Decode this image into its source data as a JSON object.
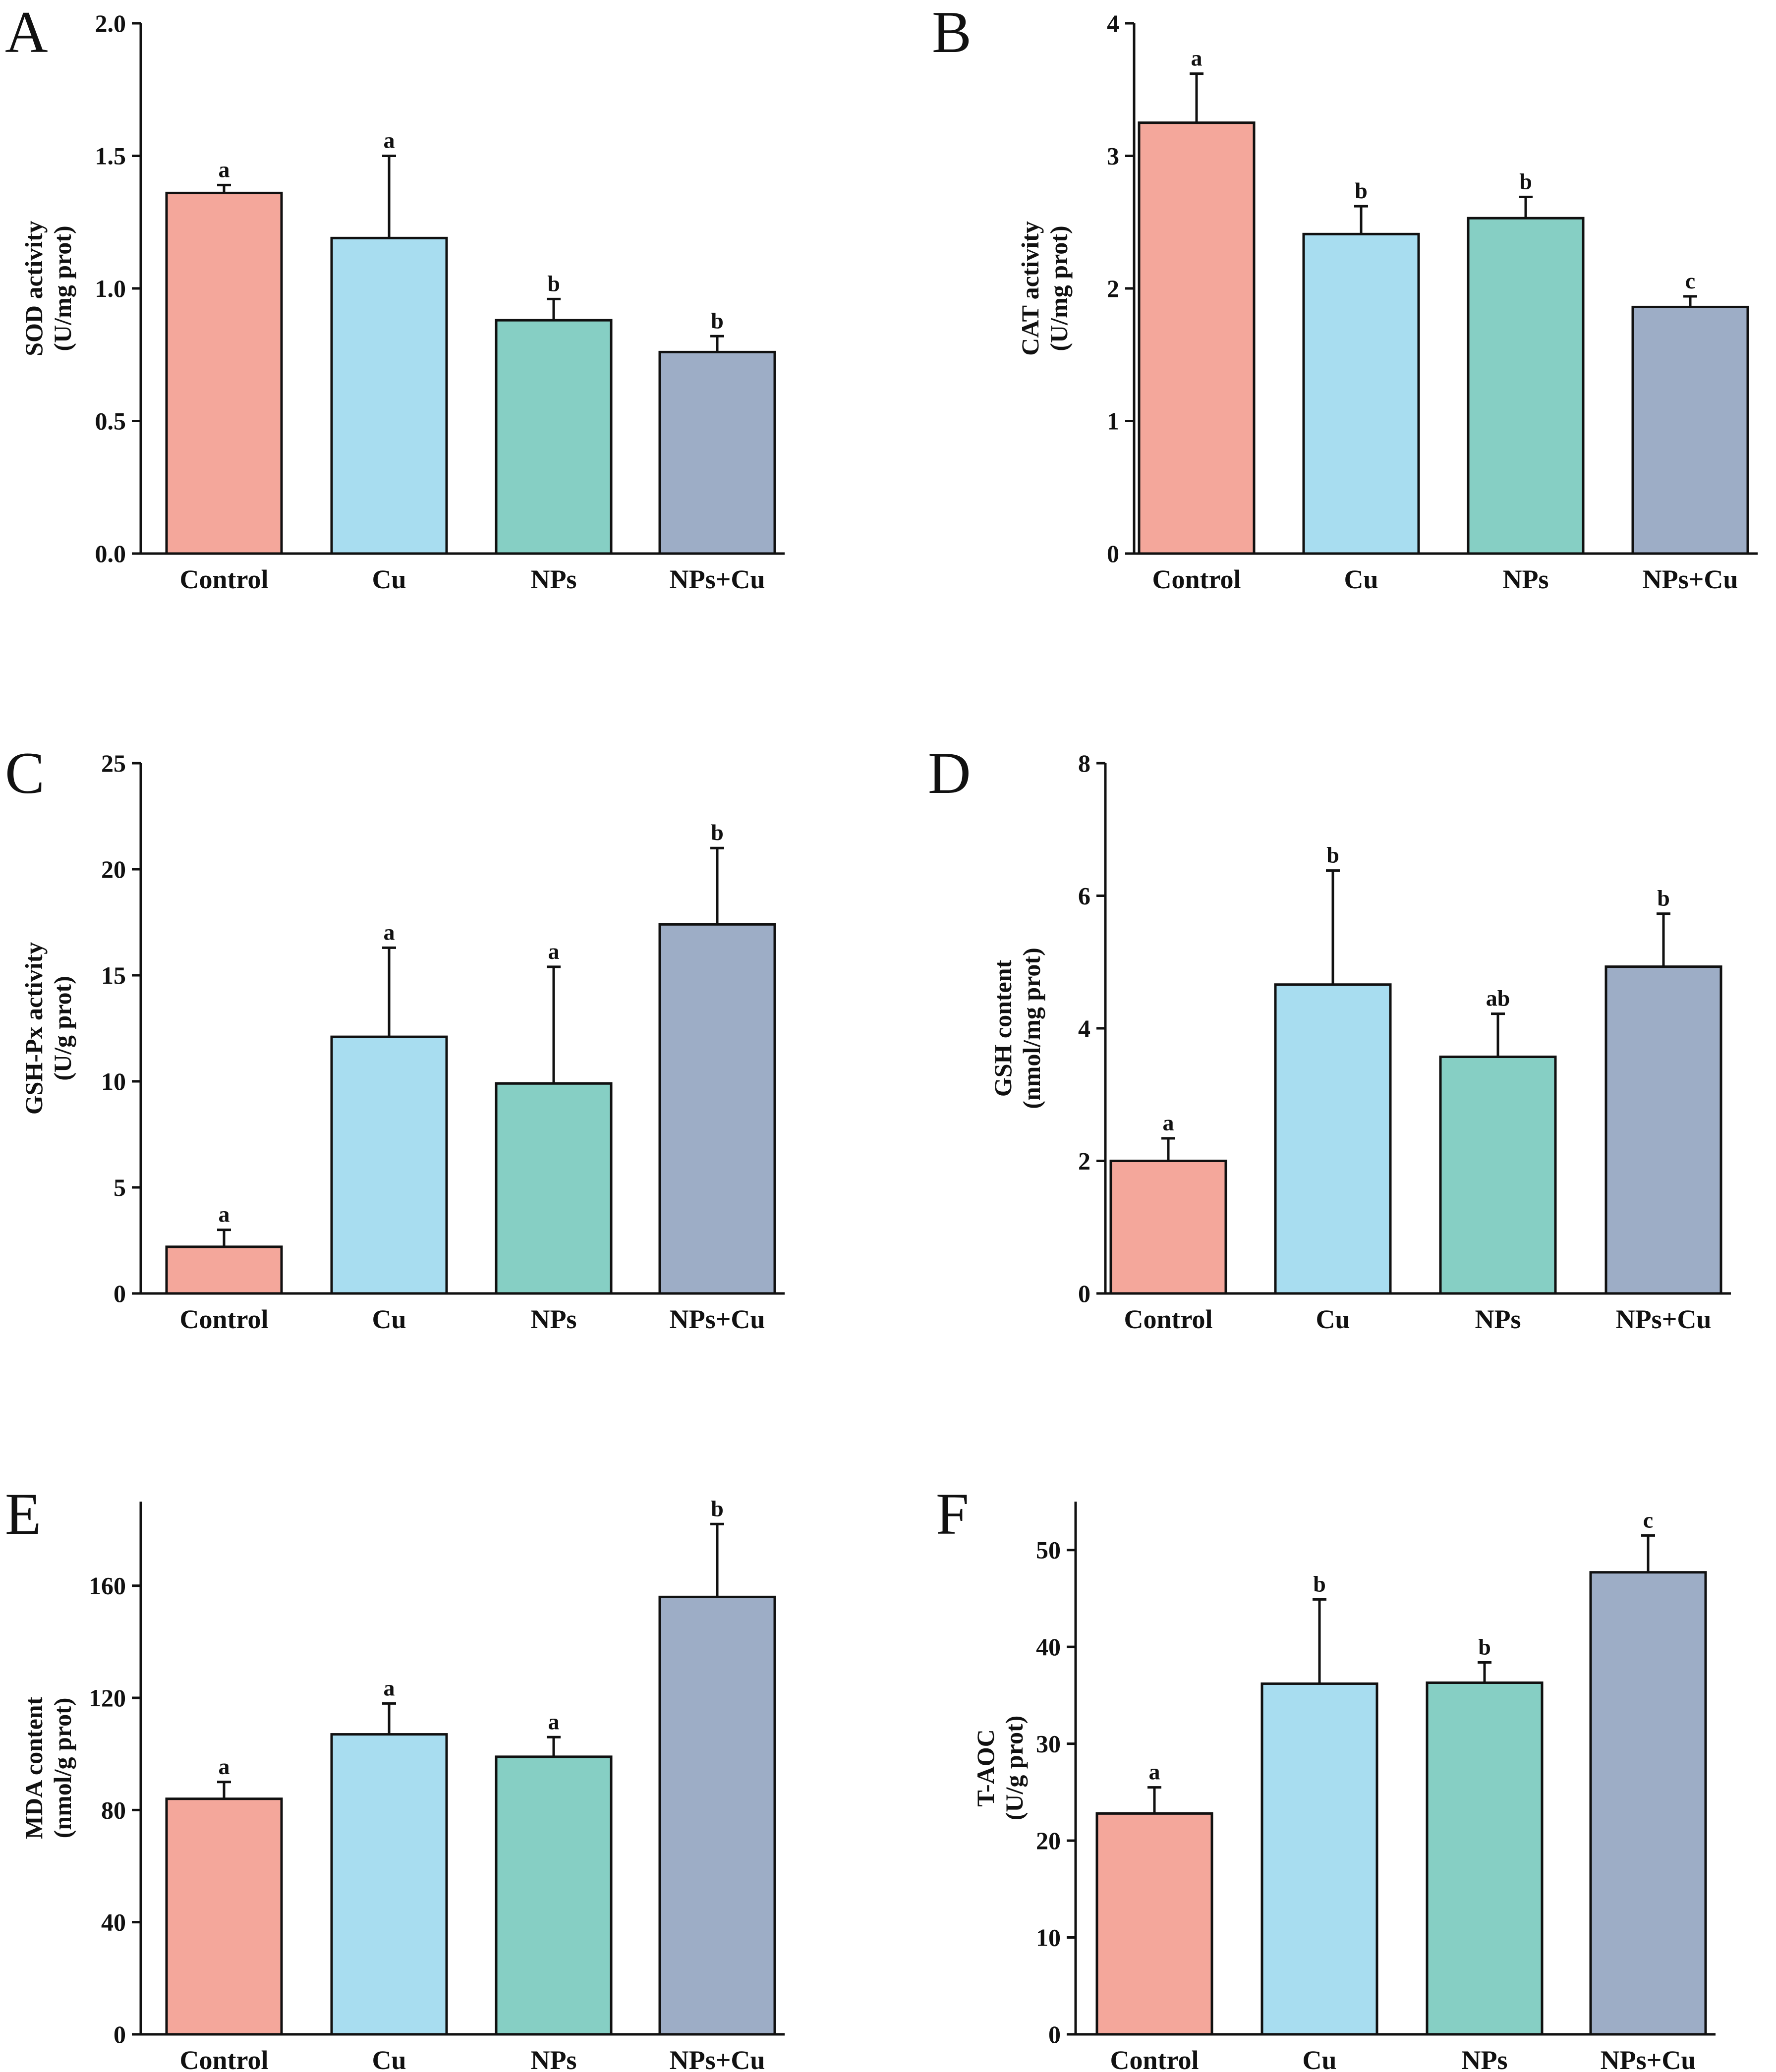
{
  "colors": {
    "Control": "#F4A79B",
    "Cu": "#A8DDF0",
    "NPs": "#86CFC4",
    "NPs+Cu": "#9DADC6"
  },
  "chart_data": [
    {
      "panel": "A",
      "type": "bar",
      "categories": [
        "Control",
        "Cu",
        "NPs",
        "NPs+Cu"
      ],
      "values": [
        1.36,
        1.19,
        0.88,
        0.76
      ],
      "errors": [
        0.03,
        0.31,
        0.08,
        0.06
      ],
      "significance": [
        "a",
        "a",
        "b",
        "b"
      ],
      "ylabel_line1": "SOD activity",
      "ylabel_line2": "(U/mg prot)",
      "ylim": [
        0,
        2.0
      ],
      "yticks": [
        "0.0",
        "0.5",
        "1.0",
        "1.5",
        "2.0"
      ]
    },
    {
      "panel": "B",
      "type": "bar",
      "categories": [
        "Control",
        "Cu",
        "NPs",
        "NPs+Cu"
      ],
      "values": [
        3.25,
        2.41,
        2.53,
        1.86
      ],
      "errors": [
        0.37,
        0.21,
        0.16,
        0.08
      ],
      "significance": [
        "a",
        "b",
        "b",
        "c"
      ],
      "ylabel_line1": "CAT activity",
      "ylabel_line2": "(U/mg prot)",
      "ylim": [
        0,
        4
      ],
      "yticks": [
        "0",
        "1",
        "2",
        "3",
        "4"
      ]
    },
    {
      "panel": "C",
      "type": "bar",
      "categories": [
        "Control",
        "Cu",
        "NPs",
        "NPs+Cu"
      ],
      "values": [
        2.2,
        12.1,
        9.9,
        17.4
      ],
      "errors": [
        0.8,
        4.2,
        5.5,
        3.6
      ],
      "significance": [
        "a",
        "a",
        "a",
        "b"
      ],
      "ylabel_line1": "GSH-Px activity",
      "ylabel_line2": "(U/g prot)",
      "ylim": [
        0,
        25
      ],
      "yticks": [
        "0",
        "5",
        "10",
        "15",
        "20",
        "25"
      ]
    },
    {
      "panel": "D",
      "type": "bar",
      "categories": [
        "Control",
        "Cu",
        "NPs",
        "NPs+Cu"
      ],
      "values": [
        2.0,
        4.66,
        3.57,
        4.93
      ],
      "errors": [
        0.34,
        1.72,
        0.65,
        0.8
      ],
      "significance": [
        "a",
        "b",
        "ab",
        "b"
      ],
      "ylabel_line1": "GSH content",
      "ylabel_line2": "(nmol/mg prot)",
      "ylim": [
        0,
        8
      ],
      "yticks": [
        "0",
        "2",
        "4",
        "6",
        "8"
      ]
    },
    {
      "panel": "E",
      "type": "bar",
      "categories": [
        "Control",
        "Cu",
        "NPs",
        "NPs+Cu"
      ],
      "values": [
        84,
        107,
        99,
        156
      ],
      "errors": [
        6,
        11,
        7,
        26
      ],
      "significance": [
        "a",
        "a",
        "a",
        "b"
      ],
      "ylabel_line1": "MDA content",
      "ylabel_line2": "(nmol/g prot)",
      "ylim": [
        0,
        190
      ],
      "yticks": [
        "0",
        "40",
        "80",
        "120",
        "160"
      ]
    },
    {
      "panel": "F",
      "type": "bar",
      "categories": [
        "Control",
        "Cu",
        "NPs",
        "NPs+Cu"
      ],
      "values": [
        22.8,
        36.2,
        36.3,
        47.7
      ],
      "errors": [
        2.7,
        8.7,
        2.1,
        3.8
      ],
      "significance": [
        "a",
        "b",
        "b",
        "c"
      ],
      "ylabel_line1": "T-AOC",
      "ylabel_line2": "(U/g prot)",
      "ylim": [
        0,
        55
      ],
      "yticks": [
        "0",
        "10",
        "20",
        "30",
        "40",
        "50"
      ]
    }
  ]
}
